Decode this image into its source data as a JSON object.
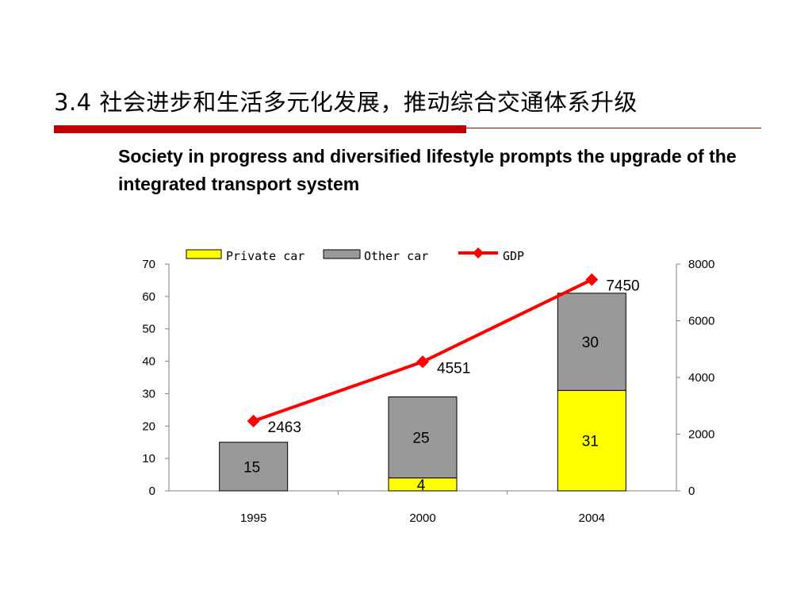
{
  "slide": {
    "title": "3.4 社会进步和生活多元化发展，推动综合交通体系升级",
    "subtitle": "Society in progress and diversified lifestyle prompts the upgrade of the integrated transport system"
  },
  "colors": {
    "title_bar": "#c00000",
    "private_car": "#ffff00",
    "other_car": "#999999",
    "gdp": "#ff0000"
  },
  "chart_data": {
    "type": "bar",
    "stacked": true,
    "categories": [
      "1995",
      "2000",
      "2004"
    ],
    "series": [
      {
        "name": "Private car",
        "type": "bar",
        "axis": "left",
        "values": [
          0,
          4,
          31
        ],
        "labels": [
          "",
          "4",
          "31"
        ]
      },
      {
        "name": "Other car",
        "type": "bar",
        "axis": "left",
        "values": [
          15,
          25,
          30
        ],
        "labels": [
          "15",
          "25",
          "30"
        ]
      },
      {
        "name": "GDP",
        "type": "line",
        "axis": "right",
        "marker": "diamond",
        "values": [
          2463,
          4551,
          7450
        ],
        "labels": [
          "2463",
          "4551",
          "7450"
        ]
      }
    ],
    "ylim": [
      0,
      70
    ],
    "yticks": [
      "0",
      "10",
      "20",
      "30",
      "40",
      "50",
      "60",
      "70"
    ],
    "y2lim": [
      0,
      8000
    ],
    "y2ticks": [
      "0",
      "2000",
      "4000",
      "6000",
      "8000"
    ],
    "legend_position": "top",
    "grid": false
  }
}
